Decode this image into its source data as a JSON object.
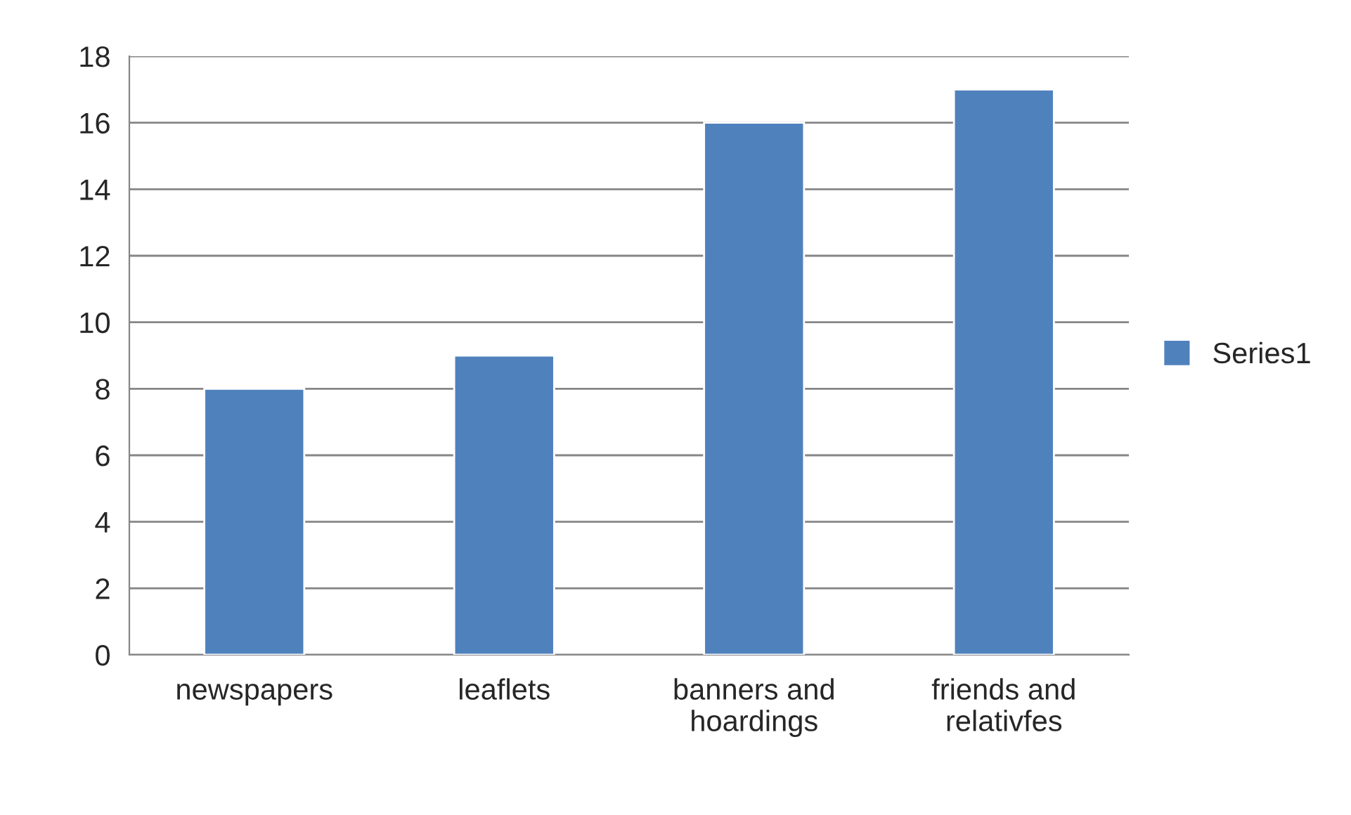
{
  "chart_data": {
    "type": "bar",
    "categories": [
      "newspapers",
      "leaflets",
      "banners and\nhoardings",
      "friends and\nrelativfes"
    ],
    "series": [
      {
        "name": "Series1",
        "color": "#4f81bd",
        "values": [
          8,
          9,
          16,
          17
        ]
      }
    ],
    "ylim": [
      0,
      18
    ],
    "yticks": [
      0,
      2,
      4,
      6,
      8,
      10,
      12,
      14,
      16,
      18
    ],
    "grid": "y",
    "legend": "right"
  }
}
